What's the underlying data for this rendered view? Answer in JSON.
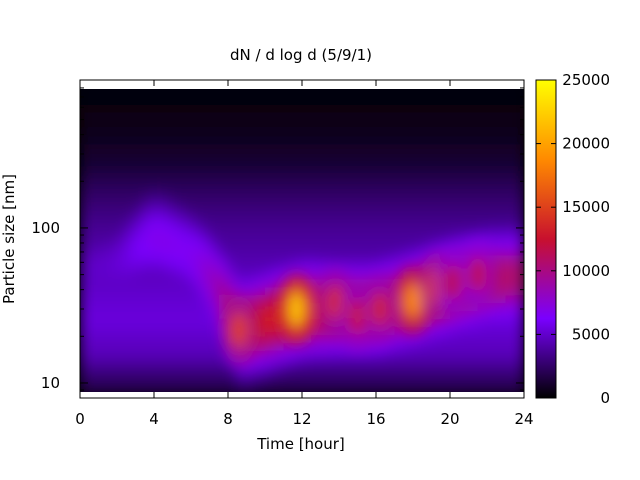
{
  "chart_data": {
    "type": "heatmap",
    "title": "dN / d log d (5/9/1)",
    "xlabel": "Time [hour]",
    "ylabel": "Particle size [nm]",
    "x_range": [
      0,
      24
    ],
    "x_ticks": [
      0,
      4,
      8,
      12,
      16,
      20,
      24
    ],
    "y_scale": "log",
    "y_range": [
      8,
      900
    ],
    "y_ticks": [
      10,
      100
    ],
    "colorbar": {
      "range": [
        0,
        25000
      ],
      "ticks": [
        0,
        5000,
        10000,
        15000,
        20000,
        25000
      ],
      "colors": [
        "#000000",
        "#7a00ff",
        "#c8102e",
        "#ff8a00",
        "#ffff00"
      ]
    },
    "background_field": {
      "size_nm": [
        8,
        10,
        15,
        25,
        40,
        70,
        100,
        150,
        250,
        400,
        700
      ],
      "level": [
        0.03,
        0.1,
        0.2,
        0.24,
        0.22,
        0.18,
        0.16,
        0.12,
        0.06,
        0.03,
        0.01
      ]
    },
    "ridge": {
      "time_hour": [
        0,
        2,
        4,
        6,
        7.5,
        8.5,
        10,
        12,
        14,
        16,
        18,
        20,
        22,
        24
      ],
      "size_nm": [
        55,
        60,
        90,
        70,
        40,
        22,
        25,
        30,
        30,
        30,
        35,
        42,
        48,
        50
      ],
      "level": [
        0.12,
        0.14,
        0.22,
        0.2,
        0.28,
        0.42,
        0.45,
        0.45,
        0.4,
        0.4,
        0.42,
        0.42,
        0.38,
        0.34
      ]
    },
    "events": [
      {
        "time_hour": 8.6,
        "size_nm": 22,
        "value": 15000
      },
      {
        "time_hour": 11.7,
        "size_nm": 30,
        "value": 22000
      },
      {
        "time_hour": 13.8,
        "size_nm": 33,
        "value": 14000
      },
      {
        "time_hour": 15.0,
        "size_nm": 27,
        "value": 13000
      },
      {
        "time_hour": 16.2,
        "size_nm": 30,
        "value": 13500
      },
      {
        "time_hour": 18.0,
        "size_nm": 34,
        "value": 19000
      },
      {
        "time_hour": 19.3,
        "size_nm": 42,
        "value": 15000
      },
      {
        "time_hour": 20.2,
        "size_nm": 45,
        "value": 12000
      },
      {
        "time_hour": 21.5,
        "size_nm": 50,
        "value": 12000
      }
    ]
  }
}
